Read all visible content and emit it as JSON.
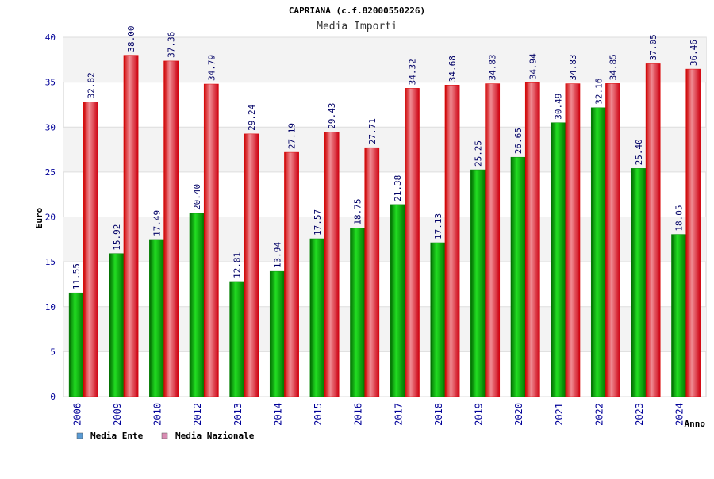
{
  "chart_data": {
    "type": "bar",
    "title": "CAPRIANA (c.f.82000550226)",
    "subtitle": "Media Importi",
    "xlabel": "Anno",
    "ylabel": "Euro",
    "ylim": [
      0,
      40
    ],
    "yticks": [
      0,
      5,
      10,
      15,
      20,
      25,
      30,
      35,
      40
    ],
    "grid": true,
    "legend_position": "bottom-left",
    "categories": [
      "2006",
      "2009",
      "2010",
      "2012",
      "2013",
      "2014",
      "2015",
      "2016",
      "2017",
      "2018",
      "2019",
      "2020",
      "2021",
      "2022",
      "2023",
      "2024"
    ],
    "series": [
      {
        "name": "Media Ente",
        "legend_color": "#5a9bd4",
        "bar_color": "#00b000",
        "values": [
          11.55,
          15.92,
          17.49,
          20.4,
          12.81,
          13.94,
          17.57,
          18.75,
          21.38,
          17.13,
          25.25,
          26.65,
          30.49,
          32.16,
          25.4,
          18.05
        ],
        "labels": [
          "11.55",
          "15.92",
          "17.49",
          "20.40",
          "12.81",
          "13.94",
          "17.57",
          "18.75",
          "21.38",
          "17.13",
          "25.25",
          "26.65",
          "30.49",
          "32.16",
          "25.40",
          "18.05"
        ]
      },
      {
        "name": "Media Nazionale",
        "legend_color": "#d98cb3",
        "bar_color": "#e0202a",
        "values": [
          32.82,
          38.0,
          37.36,
          34.79,
          29.24,
          27.19,
          29.43,
          27.71,
          34.32,
          34.68,
          34.83,
          34.94,
          34.83,
          34.85,
          37.05,
          36.46
        ],
        "labels": [
          "32.82",
          "38.00",
          "37.36",
          "34.79",
          "29.24",
          "27.19",
          "29.43",
          "27.71",
          "34.32",
          "34.68",
          "34.83",
          "34.94",
          "34.83",
          "34.85",
          "37.05",
          "36.46"
        ]
      }
    ]
  }
}
